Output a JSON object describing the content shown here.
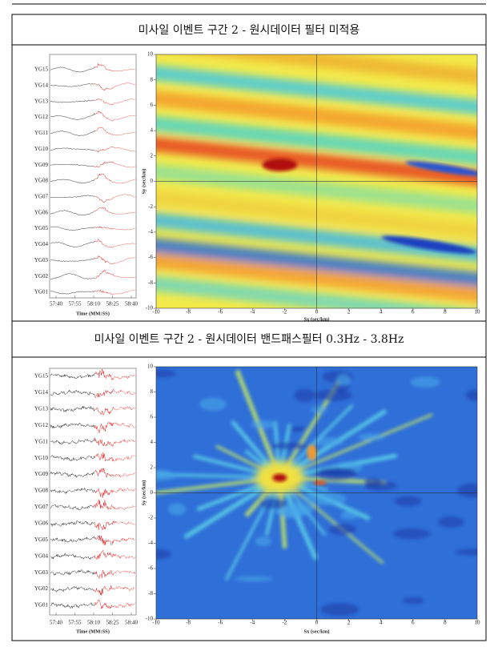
{
  "panels": [
    {
      "title": "미사일 이벤트 구간 2 - 원시데이터 필터 미적용",
      "seismogram": {
        "stations": [
          "YG15",
          "YG14",
          "YG13",
          "YG12",
          "YG11",
          "YG10",
          "YG09",
          "YG08",
          "YG07",
          "YG06",
          "YG05",
          "YG04",
          "YG03",
          "YG02",
          "YG01"
        ],
        "xticks": [
          "57:40",
          "57:55",
          "58:10",
          "58:25",
          "58:40"
        ],
        "xlabel": "Time (MM:SS)"
      },
      "slowness": {
        "xlabel": "Sx (sec/km)",
        "ylabel": "Sy (sec/km)",
        "xticks": [
          -10,
          -8,
          -6,
          -4,
          -2,
          0,
          2,
          4,
          6,
          8,
          10
        ],
        "yticks": [
          -10,
          -8,
          -6,
          -4,
          -2,
          0,
          2,
          4,
          6,
          8,
          10
        ]
      }
    },
    {
      "title": "미사일 이벤트 구간 2 - 원시데이터 밴드패스필터 0.3Hz - 3.8Hz",
      "seismogram": {
        "stations": [
          "YG15",
          "YG14",
          "YG13",
          "YG12",
          "YG11",
          "YG10",
          "YG09",
          "YG08",
          "YG07",
          "YG06",
          "YG05",
          "YG04",
          "YG03",
          "YG02",
          "YG01"
        ],
        "xticks": [
          "57:40",
          "57:55",
          "58:10",
          "58:25",
          "58:40"
        ],
        "xlabel": "Time (MM:SS)"
      },
      "slowness": {
        "xlabel": "Sx (sec/km)",
        "ylabel": "Sy (sec/km)",
        "xticks": [
          -10,
          -8,
          -6,
          -4,
          -2,
          0,
          2,
          4,
          6,
          8,
          10
        ],
        "yticks": [
          -10,
          -8,
          -6,
          -4,
          -2,
          0,
          2,
          4,
          6,
          8,
          10
        ]
      }
    }
  ]
}
